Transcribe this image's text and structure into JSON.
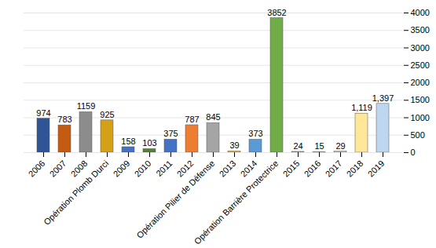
{
  "chart_data": {
    "type": "bar",
    "categories": [
      "2006",
      "2007",
      "2008",
      "Opération Plomb Durci",
      "2009",
      "2010",
      "2011",
      "2012",
      "Opération Pilier de Défense",
      "2013",
      "2014",
      "Opération Barrière Protectrice",
      "2015",
      "2016",
      "2017",
      "2018",
      "2019"
    ],
    "values": [
      974,
      783,
      1159,
      925,
      158,
      103,
      375,
      787,
      845,
      39,
      373,
      3852,
      24,
      15,
      29,
      1119,
      1397
    ],
    "value_labels": [
      "974",
      "783",
      "1159",
      "925",
      "158",
      "103",
      "375",
      "787",
      "845",
      "39",
      "373",
      "3852",
      "24",
      "15",
      "29",
      "1,119",
      "1,397"
    ],
    "colors": [
      "#2f5597",
      "#c55a11",
      "#8c8c8c",
      "#d4a017",
      "#4472c4",
      "#548235",
      "#4472c4",
      "#ed7d31",
      "#a5a5a5",
      "#ffc000",
      "#5b9bd5",
      "#70ad47",
      "#8faadc",
      "#f4b183",
      "#c9c9c9",
      "#ffe699",
      "#bdd7ee"
    ],
    "ylim": [
      0,
      4000
    ],
    "yticks": [
      0,
      500,
      1000,
      1500,
      2000,
      2500,
      3000,
      3500,
      4000
    ],
    "grid": true,
    "data_labels": true
  }
}
